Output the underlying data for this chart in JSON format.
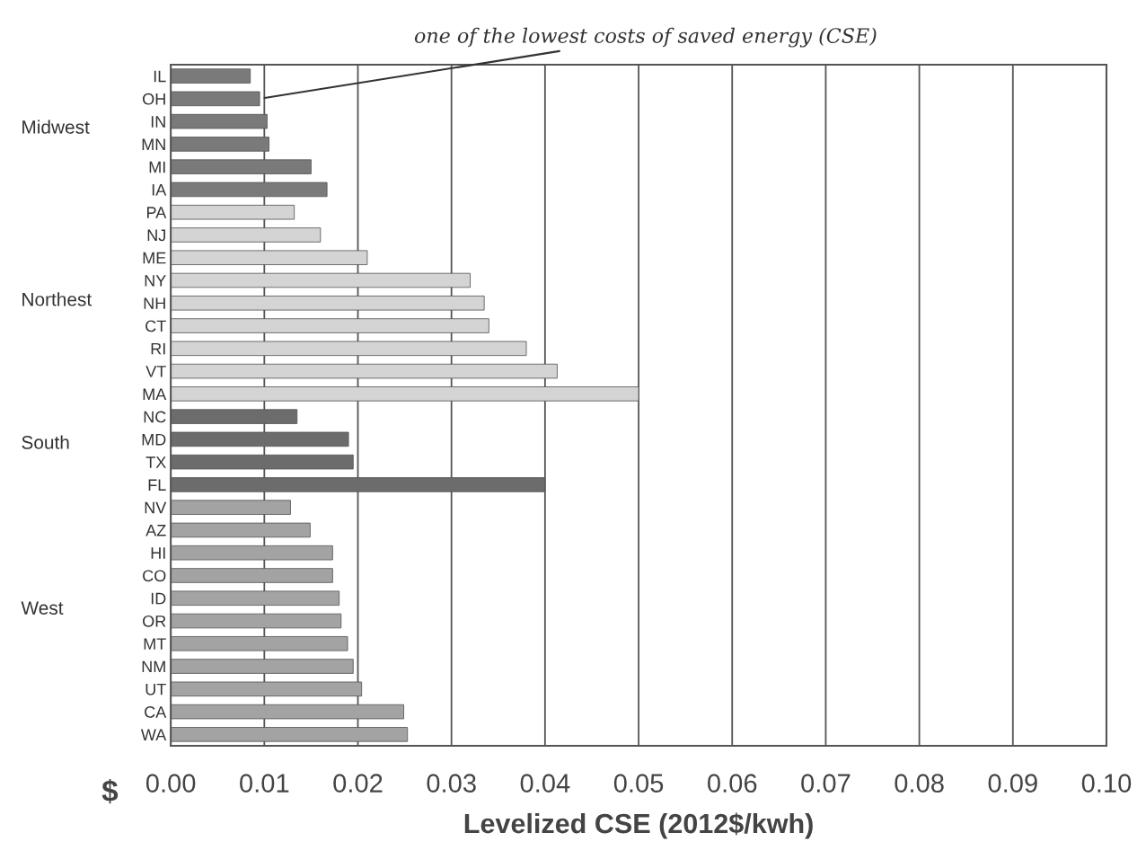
{
  "chart_data": {
    "type": "bar",
    "orientation": "horizontal",
    "xlabel": "Levelized CSE (2012$/kwh)",
    "categories": [
      "IL",
      "OH",
      "IN",
      "MN",
      "MI",
      "IA",
      "PA",
      "NJ",
      "ME",
      "NY",
      "NH",
      "CT",
      "RI",
      "VT",
      "MA",
      "NC",
      "MD",
      "TX",
      "FL",
      "NV",
      "AZ",
      "HI",
      "CO",
      "ID",
      "OR",
      "MT",
      "NM",
      "UT",
      "CA",
      "WA"
    ],
    "values": [
      0.0085,
      0.0095,
      0.0103,
      0.0105,
      0.015,
      0.0167,
      0.0132,
      0.016,
      0.021,
      0.032,
      0.0335,
      0.034,
      0.038,
      0.0413,
      0.05,
      0.0135,
      0.019,
      0.0195,
      0.04,
      0.0128,
      0.0149,
      0.0173,
      0.0173,
      0.018,
      0.0182,
      0.0189,
      0.0195,
      0.0204,
      0.0249,
      0.0253
    ],
    "colors": [
      "#7a7a7a",
      "#7a7a7a",
      "#7a7a7a",
      "#7a7a7a",
      "#7a7a7a",
      "#7a7a7a",
      "#d4d4d4",
      "#d4d4d4",
      "#d4d4d4",
      "#d4d4d4",
      "#d4d4d4",
      "#d4d4d4",
      "#d4d4d4",
      "#d4d4d4",
      "#d4d4d4",
      "#6c6c6c",
      "#6c6c6c",
      "#6c6c6c",
      "#6c6c6c",
      "#a3a3a3",
      "#a3a3a3",
      "#a3a3a3",
      "#a3a3a3",
      "#a3a3a3",
      "#a3a3a3",
      "#a3a3a3",
      "#a3a3a3",
      "#a3a3a3",
      "#a3a3a3",
      "#a3a3a3"
    ],
    "xlim": [
      0,
      0.1
    ],
    "xticks": [
      {
        "value": 0,
        "label": "0.00"
      },
      {
        "value": 0.01,
        "label": "0.01"
      },
      {
        "value": 0.02,
        "label": "0.02"
      },
      {
        "value": 0.03,
        "label": "0.03"
      },
      {
        "value": 0.04,
        "label": "0.04"
      },
      {
        "value": 0.05,
        "label": "0.05"
      },
      {
        "value": 0.06,
        "label": "0.06"
      },
      {
        "value": 0.07,
        "label": "0.07"
      },
      {
        "value": 0.08,
        "label": "0.08"
      },
      {
        "value": 0.09,
        "label": "0.09"
      },
      {
        "value": 0.1,
        "label": "0.10"
      }
    ],
    "grid": "x",
    "legend": false,
    "annotations": [
      "$",
      "Midwest",
      "Northest",
      "South",
      "West",
      {
        "text": "one of the lowest costs of saved energy (CSE)",
        "x": 0.0095,
        "y": "OH"
      }
    ]
  }
}
